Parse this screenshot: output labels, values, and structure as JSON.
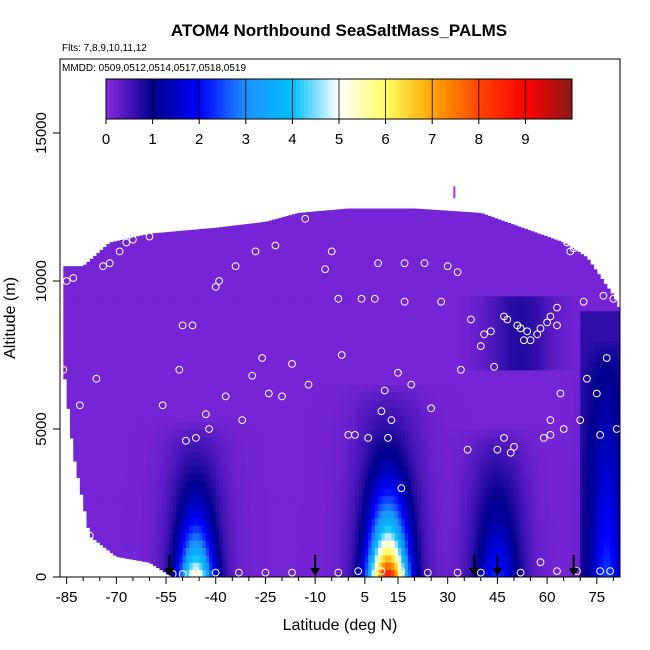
{
  "chart_data": {
    "type": "heatmap",
    "title": "ATOM4 Northbound SeaSaltMass_PALMS",
    "flights_note": "Flts: 7,8,9,10,11,12",
    "dates_note": "MMDD: 0509,0512,0514,0517,0518,0519",
    "xlabel": "Latitude (deg N)",
    "ylabel": "Altitude (m)",
    "xlim": [
      -87,
      82
    ],
    "ylim": [
      0,
      17500
    ],
    "x_ticks": [
      -85,
      -70,
      -55,
      -40,
      -25,
      -10,
      5,
      15,
      30,
      45,
      60,
      75
    ],
    "x_minor_ticks": [
      -80,
      -75,
      -65,
      -60,
      -50,
      -45,
      -35,
      -30,
      -20,
      -15,
      -5,
      0,
      10,
      20,
      25,
      35,
      40,
      50,
      55,
      65,
      70,
      80
    ],
    "y_ticks": [
      0,
      5000,
      10000,
      15000
    ],
    "colorbar": {
      "labels": [
        "0",
        "1",
        "2",
        "3",
        "4",
        "5",
        "6",
        "7",
        "8",
        "9"
      ],
      "min": 0,
      "max": 10,
      "colors": [
        "#8a2be2",
        "#00008b",
        "#0000ff",
        "#1e90ff",
        "#00bfff",
        "#ffffff",
        "#ffff66",
        "#ffa500",
        "#ff4500",
        "#ff0000",
        "#8b1a1a"
      ]
    },
    "upper_envelope": [
      [
        -86,
        10500
      ],
      [
        -80,
        10500
      ],
      [
        -77,
        10800
      ],
      [
        -72,
        11300
      ],
      [
        -60,
        11600
      ],
      [
        -40,
        11800
      ],
      [
        -25,
        12000
      ],
      [
        -15,
        12300
      ],
      [
        0,
        12450
      ],
      [
        20,
        12450
      ],
      [
        40,
        12300
      ],
      [
        55,
        11700
      ],
      [
        65,
        11300
      ],
      [
        72,
        10800
      ],
      [
        80,
        9500
      ],
      [
        82,
        9000
      ]
    ],
    "lower_envelope": [
      [
        -86,
        7200
      ],
      [
        -83,
        4200
      ],
      [
        -78,
        1400
      ],
      [
        -70,
        700
      ],
      [
        -60,
        500
      ],
      [
        -53,
        0
      ],
      [
        82,
        0
      ]
    ],
    "plumes": [
      {
        "center_lat": -46,
        "width_deg": 6,
        "top_alt": 5200,
        "peak_value": 5.5
      },
      {
        "center_lat": 12,
        "width_deg": 7,
        "top_alt": 6500,
        "peak_value": 8.8
      },
      {
        "center_lat": 45,
        "width_deg": 6,
        "top_alt": 5000,
        "peak_value": 2.2
      },
      {
        "center_lat": 78,
        "width_deg": 4,
        "top_alt": 8000,
        "peak_value": 1.8
      }
    ],
    "sample_points": [
      [
        -86,
        7000
      ],
      [
        -85,
        10000
      ],
      [
        -83,
        10100
      ],
      [
        -81,
        5800
      ],
      [
        -78,
        1400
      ],
      [
        -76,
        6700
      ],
      [
        -74,
        10500
      ],
      [
        -72,
        10600
      ],
      [
        -69,
        11000
      ],
      [
        -67,
        11300
      ],
      [
        -65,
        11400
      ],
      [
        -60,
        11500
      ],
      [
        -56,
        5800
      ],
      [
        -51,
        7000
      ],
      [
        -50,
        8500
      ],
      [
        -49,
        4600
      ],
      [
        -47,
        8500
      ],
      [
        -46,
        4700
      ],
      [
        -43,
        5500
      ],
      [
        -42,
        5000
      ],
      [
        -40,
        9800
      ],
      [
        -39,
        10000
      ],
      [
        -37,
        6100
      ],
      [
        -34,
        10500
      ],
      [
        -32,
        5300
      ],
      [
        -29,
        6800
      ],
      [
        -28,
        11000
      ],
      [
        -26,
        7400
      ],
      [
        -24,
        6200
      ],
      [
        -22,
        11200
      ],
      [
        -20,
        6100
      ],
      [
        -17,
        7200
      ],
      [
        -13,
        12100
      ],
      [
        -12,
        6500
      ],
      [
        -7,
        10400
      ],
      [
        -5,
        11000
      ],
      [
        -2,
        7500
      ],
      [
        -3,
        9400
      ],
      [
        0,
        4800
      ],
      [
        2,
        4800
      ],
      [
        4,
        9400
      ],
      [
        6,
        4700
      ],
      [
        8,
        9400
      ],
      [
        9,
        10600
      ],
      [
        10,
        5600
      ],
      [
        11,
        6300
      ],
      [
        12,
        4700
      ],
      [
        13,
        5300
      ],
      [
        15,
        6900
      ],
      [
        16,
        3000
      ],
      [
        17,
        10600
      ],
      [
        17,
        9300
      ],
      [
        19,
        6500
      ],
      [
        23,
        10600
      ],
      [
        25,
        5700
      ],
      [
        28,
        9300
      ],
      [
        30,
        10500
      ],
      [
        33,
        10300
      ],
      [
        34,
        7000
      ],
      [
        36,
        4300
      ],
      [
        37,
        8700
      ],
      [
        40,
        7800
      ],
      [
        41,
        8200
      ],
      [
        43,
        8300
      ],
      [
        44,
        7100
      ],
      [
        45,
        4300
      ],
      [
        47,
        8800
      ],
      [
        47,
        4700
      ],
      [
        48,
        8700
      ],
      [
        49,
        4200
      ],
      [
        50,
        4400
      ],
      [
        51,
        8500
      ],
      [
        52,
        8400
      ],
      [
        53,
        8000
      ],
      [
        54,
        8300
      ],
      [
        55,
        8000
      ],
      [
        57,
        8200
      ],
      [
        58,
        8400
      ],
      [
        59,
        4700
      ],
      [
        60,
        8600
      ],
      [
        61,
        8800
      ],
      [
        61,
        5300
      ],
      [
        61,
        4800
      ],
      [
        63,
        9100
      ],
      [
        63,
        8500
      ],
      [
        64,
        6200
      ],
      [
        65,
        5000
      ],
      [
        66,
        11300
      ],
      [
        67,
        11000
      ],
      [
        68,
        11100
      ],
      [
        69,
        11300
      ],
      [
        70,
        5300
      ],
      [
        71,
        9300
      ],
      [
        72,
        6700
      ],
      [
        74,
        10800
      ],
      [
        75,
        6200
      ],
      [
        76,
        4800
      ],
      [
        77,
        9500
      ],
      [
        78,
        7400
      ],
      [
        80,
        9400
      ],
      [
        81,
        5000
      ],
      [
        -53,
        100
      ],
      [
        -50,
        100
      ],
      [
        -46,
        200
      ],
      [
        -40,
        150
      ],
      [
        -33,
        150
      ],
      [
        -25,
        150
      ],
      [
        -17,
        150
      ],
      [
        -3,
        150
      ],
      [
        3,
        200
      ],
      [
        10,
        200
      ],
      [
        16,
        200
      ],
      [
        24,
        150
      ],
      [
        33,
        150
      ],
      [
        40,
        150
      ],
      [
        52,
        150
      ],
      [
        58,
        500
      ],
      [
        63,
        200
      ],
      [
        69,
        200
      ],
      [
        76,
        200
      ],
      [
        79,
        200
      ]
    ],
    "arrows_lat": [
      -54,
      -10,
      38,
      45,
      68
    ],
    "markers": [
      [
        32,
        13000
      ]
    ]
  }
}
